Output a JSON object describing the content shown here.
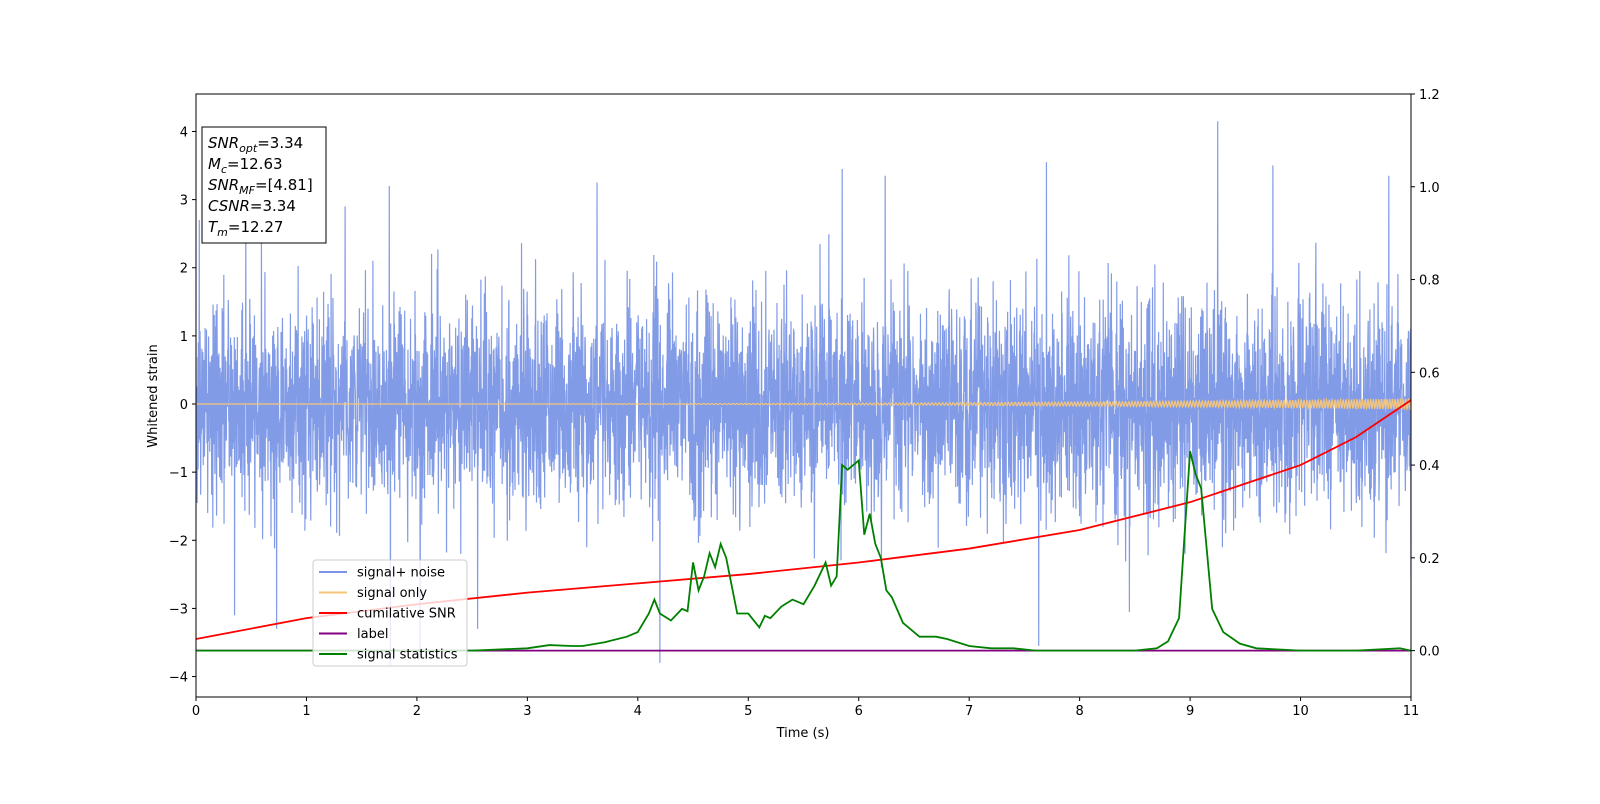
{
  "chart_data": {
    "type": "line",
    "xlabel": "Time (s)",
    "ylabel": "Whitened strain",
    "xlim": [
      0,
      11
    ],
    "ylim_left": [
      -4.3,
      4.55
    ],
    "ylim_right": [
      -0.1,
      1.2
    ],
    "x_ticks": [
      0,
      1,
      2,
      3,
      4,
      5,
      6,
      7,
      8,
      9,
      10,
      11
    ],
    "y_ticks_left": [
      -4,
      -3,
      -2,
      -1,
      0,
      1,
      2,
      3,
      4
    ],
    "y_ticks_right": [
      "0.0",
      "0.2",
      "0.4",
      "0.6",
      "0.8",
      "1.0",
      "1.2"
    ],
    "grid": false,
    "annotation_box": {
      "lines": [
        {
          "sym": "SNR",
          "sub": "opt",
          "val": "=3.34"
        },
        {
          "sym": "M",
          "sub": "c",
          "val": "=12.63"
        },
        {
          "sym": "SNR",
          "sub": "MF",
          "val": "=[4.81]"
        },
        {
          "sym": "CSNR",
          "sub": "",
          "val": "=3.34"
        },
        {
          "sym": "T",
          "sub": "m",
          "val": "=12.27"
        }
      ]
    },
    "legend": {
      "placement": "lower-left",
      "entries": [
        {
          "label": "signal+ noise",
          "color": "#7b96e6"
        },
        {
          "label": "signal only",
          "color": "#f5c57a"
        },
        {
          "label": "cumilative SNR",
          "color": "#ff0000"
        },
        {
          "label": "label",
          "color": "#800080"
        },
        {
          "label": "signal statistics",
          "color": "#008000"
        }
      ]
    },
    "series": [
      {
        "name": "signal+ noise",
        "axis": "left",
        "color": "#7b96e6",
        "kind": "noise_envelope",
        "band_typical": [
          -1.9,
          2.1
        ],
        "spikes": [
          {
            "x": 0.03,
            "y": 2.7
          },
          {
            "x": 0.35,
            "y": -3.1
          },
          {
            "x": 0.45,
            "y": 2.6
          },
          {
            "x": 0.73,
            "y": -3.3
          },
          {
            "x": 1.35,
            "y": 2.9
          },
          {
            "x": 1.75,
            "y": 3.2
          },
          {
            "x": 1.76,
            "y": -3.85
          },
          {
            "x": 2.03,
            "y": -3.75
          },
          {
            "x": 2.55,
            "y": -3.3
          },
          {
            "x": 3.63,
            "y": 3.25
          },
          {
            "x": 4.2,
            "y": -3.8
          },
          {
            "x": 5.85,
            "y": 3.45
          },
          {
            "x": 6.24,
            "y": 3.35
          },
          {
            "x": 7.7,
            "y": 3.55
          },
          {
            "x": 7.63,
            "y": -3.55
          },
          {
            "x": 8.45,
            "y": -3.05
          },
          {
            "x": 9.25,
            "y": 4.15
          },
          {
            "x": 9.75,
            "y": 3.5
          },
          {
            "x": 10.8,
            "y": 3.35
          },
          {
            "x": 11.0,
            "y": -2.55
          }
        ]
      },
      {
        "name": "signal only",
        "axis": "left",
        "color": "#f5c57a",
        "kind": "chirp",
        "amplitude_start": 0.0,
        "amplitude_end": 0.08
      },
      {
        "name": "cumilative SNR",
        "axis": "right",
        "color": "#ff0000",
        "x": [
          0,
          1,
          2,
          3,
          4,
          5,
          6,
          7,
          8,
          9,
          10,
          10.5,
          11
        ],
        "y": [
          0.025,
          0.07,
          0.1,
          0.125,
          0.145,
          0.165,
          0.19,
          0.22,
          0.26,
          0.32,
          0.4,
          0.46,
          0.54
        ]
      },
      {
        "name": "label",
        "axis": "right",
        "color": "#800080",
        "x": [
          0,
          11
        ],
        "y": [
          0.0,
          0.0
        ]
      },
      {
        "name": "signal statistics",
        "axis": "right",
        "color": "#008000",
        "x": [
          0,
          0.5,
          1,
          1.5,
          2,
          2.5,
          3,
          3.2,
          3.4,
          3.5,
          3.7,
          3.9,
          4.0,
          4.1,
          4.15,
          4.2,
          4.3,
          4.4,
          4.45,
          4.5,
          4.55,
          4.6,
          4.65,
          4.7,
          4.75,
          4.8,
          4.85,
          4.9,
          5.0,
          5.1,
          5.15,
          5.2,
          5.3,
          5.4,
          5.5,
          5.6,
          5.7,
          5.75,
          5.8,
          5.85,
          5.9,
          6.0,
          6.05,
          6.1,
          6.15,
          6.2,
          6.25,
          6.3,
          6.4,
          6.55,
          6.7,
          6.8,
          7.0,
          7.2,
          7.4,
          7.6,
          8.0,
          8.5,
          8.7,
          8.8,
          8.9,
          9.0,
          9.05,
          9.1,
          9.2,
          9.3,
          9.45,
          9.6,
          10.0,
          10.5,
          10.9,
          11.0
        ],
        "y": [
          0.0,
          0.0,
          0.0,
          0.0,
          0.0,
          0.0,
          0.005,
          0.012,
          0.01,
          0.01,
          0.018,
          0.03,
          0.04,
          0.08,
          0.11,
          0.08,
          0.065,
          0.09,
          0.085,
          0.19,
          0.13,
          0.16,
          0.21,
          0.18,
          0.23,
          0.2,
          0.14,
          0.08,
          0.08,
          0.05,
          0.075,
          0.07,
          0.095,
          0.11,
          0.1,
          0.14,
          0.19,
          0.14,
          0.16,
          0.4,
          0.39,
          0.41,
          0.25,
          0.295,
          0.23,
          0.2,
          0.13,
          0.115,
          0.06,
          0.03,
          0.03,
          0.025,
          0.01,
          0.005,
          0.005,
          0.0,
          0.0,
          0.0,
          0.005,
          0.02,
          0.07,
          0.43,
          0.38,
          0.35,
          0.09,
          0.04,
          0.015,
          0.005,
          0.0,
          0.0,
          0.005,
          0.0
        ]
      }
    ]
  }
}
